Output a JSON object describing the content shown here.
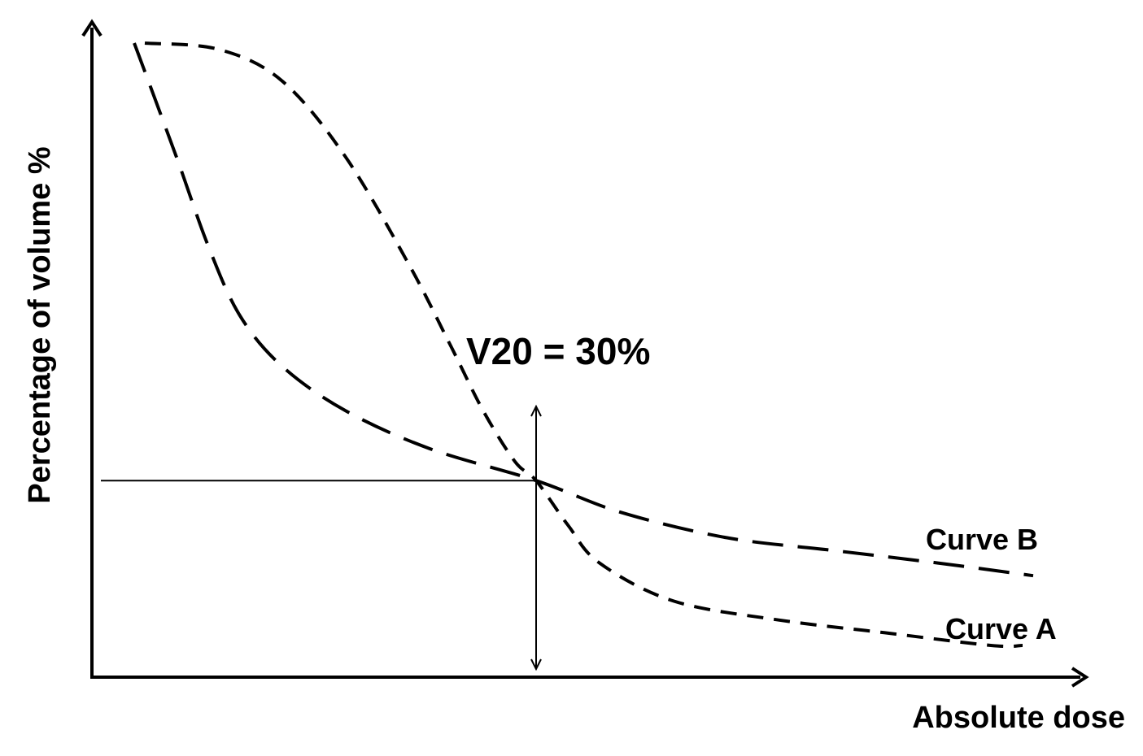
{
  "chart_data": {
    "type": "line",
    "title": "",
    "xlabel": "Absolute dose",
    "ylabel": "Percentage of volume %",
    "annotation": "V20 = 30%",
    "grid": false,
    "legend": "none",
    "axis_ticks": false,
    "marker": {
      "x": 0.42,
      "y": 0.31
    },
    "series": [
      {
        "name": "Curve A",
        "style": "short-dash",
        "points": [
          [
            0.05,
            1.0
          ],
          [
            0.12,
            0.99
          ],
          [
            0.18,
            0.94
          ],
          [
            0.24,
            0.82
          ],
          [
            0.3,
            0.65
          ],
          [
            0.34,
            0.52
          ],
          [
            0.37,
            0.42
          ],
          [
            0.4,
            0.34
          ],
          [
            0.42,
            0.31
          ],
          [
            0.45,
            0.24
          ],
          [
            0.48,
            0.18
          ],
          [
            0.55,
            0.12
          ],
          [
            0.65,
            0.09
          ],
          [
            0.75,
            0.07
          ],
          [
            0.85,
            0.05
          ],
          [
            0.88,
            0.05
          ]
        ]
      },
      {
        "name": "Curve B",
        "style": "long-dash",
        "points": [
          [
            0.04,
            1.0
          ],
          [
            0.08,
            0.82
          ],
          [
            0.11,
            0.68
          ],
          [
            0.14,
            0.57
          ],
          [
            0.18,
            0.49
          ],
          [
            0.24,
            0.42
          ],
          [
            0.32,
            0.36
          ],
          [
            0.42,
            0.31
          ],
          [
            0.5,
            0.26
          ],
          [
            0.6,
            0.22
          ],
          [
            0.7,
            0.2
          ],
          [
            0.8,
            0.18
          ],
          [
            0.89,
            0.16
          ]
        ]
      }
    ]
  }
}
